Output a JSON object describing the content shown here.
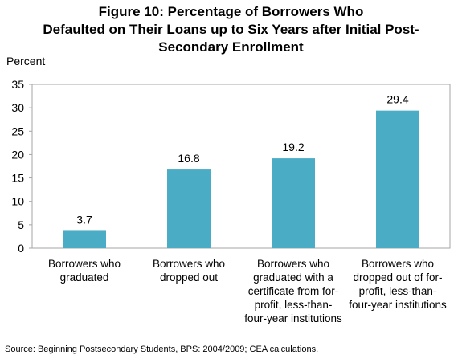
{
  "chart_data": {
    "type": "bar",
    "title_lines": [
      "Figure 10: Percentage of Borrowers Who",
      "Defaulted on Their Loans up to Six Years after Initial Post-",
      "Secondary Enrollment"
    ],
    "ylabel": "Percent",
    "xlabel": "",
    "ylim": [
      0,
      35
    ],
    "yticks": [
      0,
      5,
      10,
      15,
      20,
      25,
      30,
      35
    ],
    "grid": false,
    "categories": [
      "Borrowers who graduated",
      "Borrowers who dropped out",
      "Borrowers who graduated with a certificate from for-profit, less-than-four-year institutions",
      "Borrowers who dropped out of for-profit, less-than-four-year institutions"
    ],
    "category_label_lines": [
      [
        "Borrowers who",
        "graduated"
      ],
      [
        "Borrowers who",
        "dropped out"
      ],
      [
        "Borrowers who",
        "graduated with a",
        "certificate from for-",
        "profit, less-than-",
        "four-year institutions"
      ],
      [
        "Borrowers who",
        "dropped out of for-",
        "profit, less-than-",
        "four-year institutions"
      ]
    ],
    "values": [
      3.7,
      16.8,
      19.2,
      29.4
    ],
    "data_labels": [
      "3.7",
      "16.8",
      "19.2",
      "29.4"
    ],
    "bar_color": "#4BACC6",
    "axis_color": "#A6A6A6"
  },
  "source": "Source: Beginning Postsecondary Students, BPS: 2004/2009; CEA calculations."
}
